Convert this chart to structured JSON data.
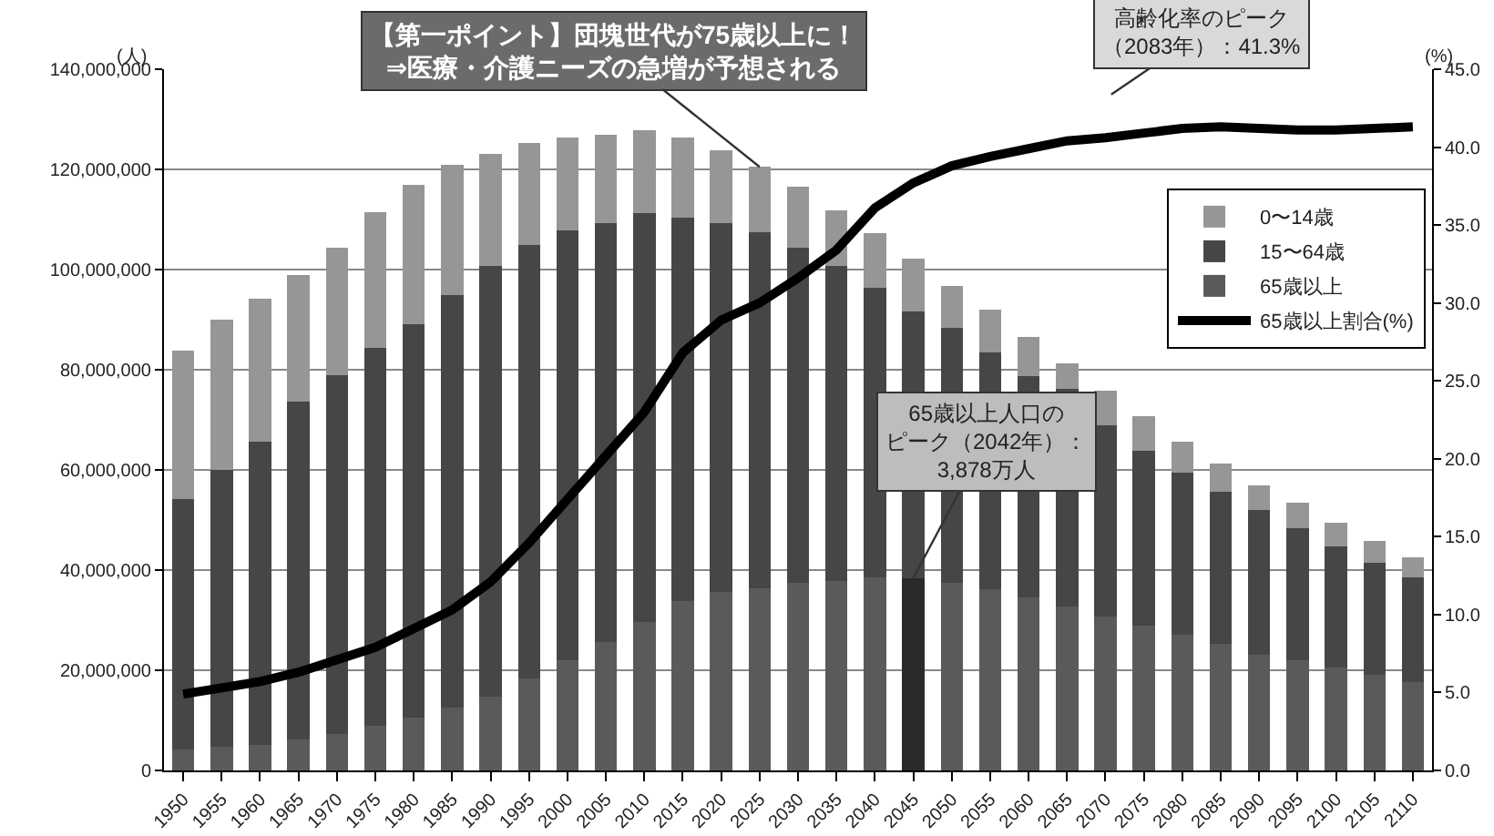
{
  "chart_data": {
    "type": "bar",
    "stacked": true,
    "categories": [
      "1950",
      "1955",
      "1960",
      "1965",
      "1970",
      "1975",
      "1980",
      "1985",
      "1990",
      "1995",
      "2000",
      "2005",
      "2010",
      "2015",
      "2020",
      "2025",
      "2030",
      "2035",
      "2040",
      "2045",
      "2050",
      "2055",
      "2060",
      "2065",
      "2070",
      "2075",
      "2080",
      "2085",
      "2090",
      "2095",
      "2100",
      "2105",
      "2110"
    ],
    "series": [
      {
        "name": "65歳以上",
        "color": "#5a5a5a",
        "colors": [
          null,
          null,
          null,
          null,
          null,
          null,
          null,
          null,
          null,
          null,
          null,
          null,
          null,
          null,
          null,
          null,
          null,
          null,
          null,
          "#2a2a2a",
          null,
          null,
          null,
          null,
          null,
          null,
          null,
          null,
          null,
          null,
          null,
          null,
          null
        ],
        "values": [
          4100000,
          4700000,
          5100000,
          6100000,
          7200000,
          9000000,
          10500000,
          12600000,
          14800000,
          18400000,
          22000000,
          25600000,
          29600000,
          33900000,
          35700000,
          36400000,
          37500000,
          37800000,
          38600000,
          38400000,
          37500000,
          36100000,
          34600000,
          32800000,
          30700000,
          28900000,
          27100000,
          25300000,
          23100000,
          22000000,
          20600000,
          19100000,
          17700000
        ]
      },
      {
        "name": "15〜64歳",
        "color": "#464646",
        "values": [
          50000000,
          55300000,
          60600000,
          67500000,
          71800000,
          75400000,
          78600000,
          82300000,
          85900000,
          86600000,
          85900000,
          83700000,
          81600000,
          76500000,
          73600000,
          71100000,
          66800000,
          62900000,
          57800000,
          53300000,
          50900000,
          47300000,
          44100000,
          43400000,
          38200000,
          35000000,
          32400000,
          30300000,
          28900000,
          26400000,
          24100000,
          22400000,
          20900000
        ]
      },
      {
        "name": "0〜14歳",
        "color": "#969696",
        "values": [
          29800000,
          30000000,
          28500000,
          25300000,
          25300000,
          27100000,
          27800000,
          26000000,
          22400000,
          20200000,
          18400000,
          17700000,
          16600000,
          15900000,
          14500000,
          13000000,
          12300000,
          11200000,
          10800000,
          10400000,
          8300000,
          8600000,
          7900000,
          5000000,
          6900000,
          6800000,
          6200000,
          5700000,
          5000000,
          5000000,
          4700000,
          4300000,
          4000000
        ]
      },
      {
        "name": "65歳以上割合(%)",
        "type": "line",
        "axis": "y2",
        "color": "#000000",
        "marker": "none",
        "line_style": "solid",
        "values": [
          4.9,
          5.3,
          5.7,
          6.3,
          7.1,
          7.9,
          9.1,
          10.3,
          12.1,
          14.6,
          17.4,
          20.2,
          23.0,
          26.8,
          28.9,
          30.0,
          31.6,
          33.4,
          36.1,
          37.7,
          38.8,
          39.4,
          39.9,
          40.4,
          40.6,
          40.9,
          41.2,
          41.3,
          41.2,
          41.1,
          41.1,
          41.2,
          41.3
        ]
      }
    ],
    "ylabel": "(人)",
    "y2label": "(%)",
    "ylim": [
      0,
      140000000
    ],
    "yticks": [
      {
        "value": 0,
        "label": "0"
      },
      {
        "value": 20000000,
        "label": "20,000,000"
      },
      {
        "value": 40000000,
        "label": "40,000,000"
      },
      {
        "value": 60000000,
        "label": "60,000,000"
      },
      {
        "value": 80000000,
        "label": "80,000,000"
      },
      {
        "value": 100000000,
        "label": "100,000,000"
      },
      {
        "value": 120000000,
        "label": "120,000,000"
      },
      {
        "value": 140000000,
        "label": "140,000,000"
      }
    ],
    "y2lim": [
      0,
      45
    ],
    "y2ticks": [
      {
        "value": 0,
        "label": "0.0"
      },
      {
        "value": 5,
        "label": "5.0"
      },
      {
        "value": 10,
        "label": "10.0"
      },
      {
        "value": 15,
        "label": "15.0"
      },
      {
        "value": 20,
        "label": "20.0"
      },
      {
        "value": 25,
        "label": "25.0"
      },
      {
        "value": 30,
        "label": "30.0"
      },
      {
        "value": 35,
        "label": "35.0"
      },
      {
        "value": 40,
        "label": "40.0"
      },
      {
        "value": 45,
        "label": "45.0"
      }
    ],
    "grid": "y",
    "legend": "top right",
    "annotations": [
      {
        "text": "【第一ポイント】団塊世代が75歳以上に！⇒医療・介護ニーズの急増が予想される",
        "x": "2025",
        "y": 120500000
      },
      "高齢化率のピーク（2083年）：41.3%",
      {
        "text": "65歳以上人口のピーク（2042年）：3,878万人",
        "x": "2045",
        "y": 38400000
      }
    ]
  }
}
